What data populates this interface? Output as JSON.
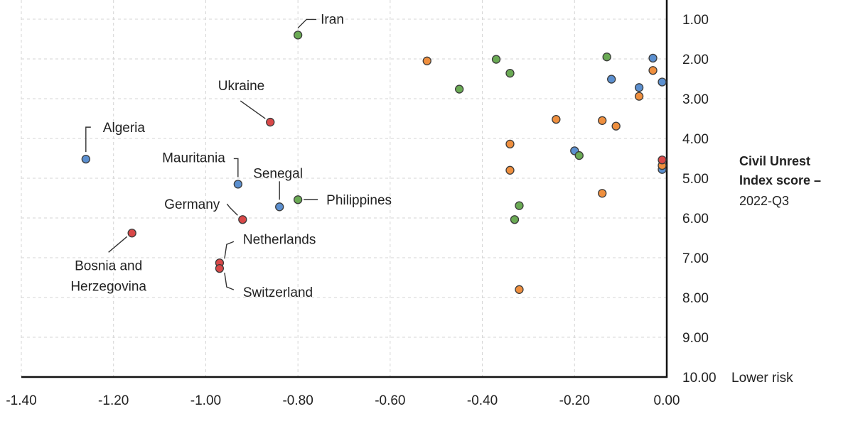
{
  "chart_data": {
    "type": "scatter",
    "title": "",
    "xlabel": "",
    "ylabel": "Civil Unrest Index score – 2022-Q3",
    "xlim": [
      -1.4,
      0.0
    ],
    "ylim": [
      10.0,
      0.65
    ],
    "x_ticks": [
      "-1.40",
      "-1.20",
      "-1.00",
      "-0.80",
      "-0.60",
      "-0.40",
      "-0.20",
      "0.00"
    ],
    "y_ticks": [
      "1.00",
      "2.00",
      "3.00",
      "4.00",
      "5.00",
      "6.00",
      "7.00",
      "8.00",
      "9.00",
      "10.00"
    ],
    "y_axis_label": {
      "line1": "Civil Unrest",
      "line2": "Index score –",
      "line3": "2022-Q3"
    },
    "lower_risk_label": "Lower risk",
    "grid": true,
    "colors": {
      "blue": "#5b8fcf",
      "green": "#6aaa54",
      "orange": "#ef8f3e",
      "red": "#d94848"
    },
    "series": [
      {
        "name": "blue",
        "points": [
          {
            "x": -1.26,
            "y": 4.52,
            "label": "Algeria"
          },
          {
            "x": -0.93,
            "y": 5.15,
            "label": "Mauritania"
          },
          {
            "x": -0.84,
            "y": 5.72,
            "label": "Senegal"
          },
          {
            "x": -0.03,
            "y": 1.98
          },
          {
            "x": -0.12,
            "y": 2.51
          },
          {
            "x": -0.06,
            "y": 2.72
          },
          {
            "x": -0.01,
            "y": 2.58
          },
          {
            "x": -0.2,
            "y": 4.31
          },
          {
            "x": -0.01,
            "y": 4.78
          }
        ]
      },
      {
        "name": "green",
        "points": [
          {
            "x": -0.8,
            "y": 1.4,
            "label": "Iran"
          },
          {
            "x": -0.8,
            "y": 5.54,
            "label": "Philippines"
          },
          {
            "x": -0.37,
            "y": 2.01
          },
          {
            "x": -0.34,
            "y": 2.36
          },
          {
            "x": -0.45,
            "y": 2.76
          },
          {
            "x": -0.13,
            "y": 1.95
          },
          {
            "x": -0.19,
            "y": 4.43
          },
          {
            "x": -0.32,
            "y": 5.69
          },
          {
            "x": -0.33,
            "y": 6.04
          }
        ]
      },
      {
        "name": "orange",
        "points": [
          {
            "x": -0.52,
            "y": 2.05
          },
          {
            "x": -0.03,
            "y": 2.29
          },
          {
            "x": -0.06,
            "y": 2.94
          },
          {
            "x": -0.24,
            "y": 3.52
          },
          {
            "x": -0.14,
            "y": 3.55
          },
          {
            "x": -0.11,
            "y": 3.69
          },
          {
            "x": -0.34,
            "y": 4.14
          },
          {
            "x": -0.34,
            "y": 4.8
          },
          {
            "x": -0.01,
            "y": 4.68
          },
          {
            "x": -0.14,
            "y": 5.38
          },
          {
            "x": -0.32,
            "y": 7.8
          }
        ]
      },
      {
        "name": "red",
        "points": [
          {
            "x": -0.86,
            "y": 3.59,
            "label": "Ukraine"
          },
          {
            "x": -0.92,
            "y": 6.04,
            "label": "Germany"
          },
          {
            "x": -1.16,
            "y": 6.38,
            "label": "Bosnia and Herzegovina"
          },
          {
            "x": -0.97,
            "y": 7.13,
            "label": "Netherlands"
          },
          {
            "x": -0.97,
            "y": 7.27,
            "label": "Switzerland"
          },
          {
            "x": -0.01,
            "y": 4.54
          }
        ]
      }
    ]
  }
}
